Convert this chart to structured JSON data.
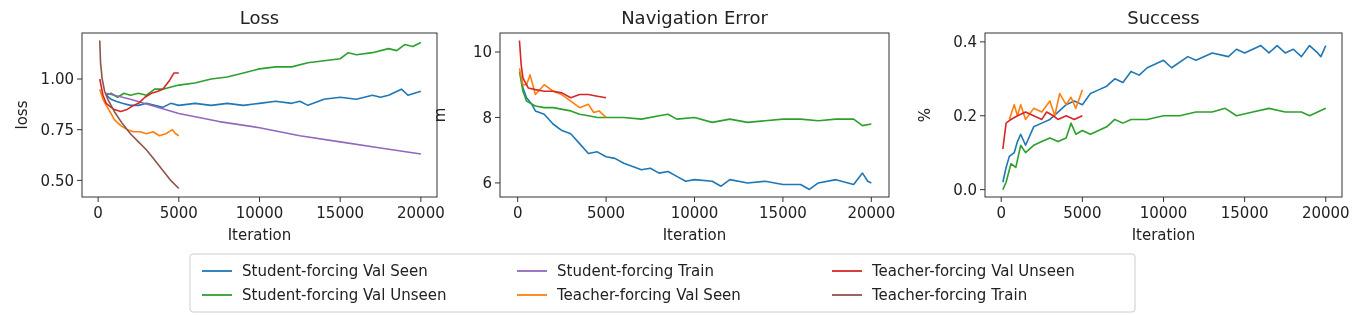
{
  "chart_data": [
    {
      "type": "line",
      "title": "Loss",
      "xlabel": "Iteration",
      "ylabel": "loss",
      "xlim": [
        -1000,
        21000
      ],
      "ylim": [
        0.418,
        1.227
      ],
      "xticks": [
        0,
        5000,
        10000,
        15000,
        20000
      ],
      "yticks": [
        {
          "value": 0.5,
          "label": "0.50"
        },
        {
          "value": 0.75,
          "label": "0.75"
        },
        {
          "value": 1.0,
          "label": "1.00"
        }
      ],
      "grid": false,
      "legend": "bottom",
      "marker": "none",
      "line_style": "solid",
      "series": [
        {
          "name": "Student-forcing Val Seen",
          "color": "#1f77b4",
          "x": [
            500,
            800,
            1100,
            1500,
            2000,
            2500,
            3000,
            3500,
            4000,
            4500,
            5000,
            6000,
            7000,
            8000,
            9000,
            10000,
            11000,
            12000,
            12500,
            13000,
            14000,
            15000,
            16000,
            17000,
            17500,
            18000,
            18800,
            19200,
            19600,
            20000
          ],
          "values": [
            0.92,
            0.9,
            0.89,
            0.88,
            0.87,
            0.87,
            0.88,
            0.87,
            0.86,
            0.88,
            0.87,
            0.88,
            0.87,
            0.88,
            0.87,
            0.88,
            0.89,
            0.88,
            0.89,
            0.87,
            0.9,
            0.91,
            0.9,
            0.92,
            0.91,
            0.92,
            0.95,
            0.92,
            0.93,
            0.94
          ]
        },
        {
          "name": "Student-forcing Val Unseen",
          "color": "#2ca02c",
          "x": [
            500,
            800,
            1200,
            1600,
            2000,
            2500,
            3000,
            3500,
            4000,
            5000,
            6000,
            7000,
            8000,
            9000,
            10000,
            11000,
            12000,
            13000,
            14000,
            15000,
            15500,
            16000,
            17000,
            18000,
            18500,
            19000,
            19500,
            20000
          ],
          "values": [
            0.92,
            0.93,
            0.91,
            0.93,
            0.92,
            0.93,
            0.92,
            0.95,
            0.95,
            0.97,
            0.98,
            1.0,
            1.01,
            1.03,
            1.05,
            1.06,
            1.06,
            1.08,
            1.09,
            1.1,
            1.13,
            1.12,
            1.13,
            1.15,
            1.14,
            1.17,
            1.16,
            1.18
          ]
        },
        {
          "name": "Student-forcing Train",
          "color": "#9467bd",
          "x": [
            500,
            2000,
            5000,
            7500,
            10000,
            12500,
            15000,
            17500,
            20000
          ],
          "values": [
            0.93,
            0.9,
            0.83,
            0.79,
            0.76,
            0.72,
            0.69,
            0.66,
            0.63
          ]
        },
        {
          "name": "Teacher-forcing Val Seen",
          "color": "#ff7f0e",
          "x": [
            100,
            300,
            500,
            800,
            1000,
            1400,
            1800,
            2200,
            2600,
            3000,
            3400,
            3800,
            4200,
            4600,
            4800,
            5000
          ],
          "values": [
            0.95,
            0.9,
            0.87,
            0.83,
            0.8,
            0.77,
            0.75,
            0.74,
            0.74,
            0.73,
            0.74,
            0.72,
            0.73,
            0.75,
            0.73,
            0.72
          ]
        },
        {
          "name": "Teacher-forcing Val Unseen",
          "color": "#d62728",
          "x": [
            100,
            300,
            500,
            800,
            1000,
            1400,
            1800,
            2200,
            2500,
            2900,
            3300,
            3700,
            4000,
            4400,
            4700,
            5000
          ],
          "values": [
            1.0,
            0.92,
            0.88,
            0.86,
            0.85,
            0.84,
            0.85,
            0.87,
            0.88,
            0.91,
            0.93,
            0.94,
            0.95,
            0.99,
            1.03,
            1.03
          ]
        },
        {
          "name": "Teacher-forcing Train",
          "color": "#8c564b",
          "x": [
            100,
            150,
            250,
            400,
            600,
            1000,
            1500,
            2000,
            2500,
            3000,
            3500,
            4000,
            4500,
            5000
          ],
          "values": [
            1.19,
            1.08,
            1.0,
            0.94,
            0.9,
            0.84,
            0.78,
            0.73,
            0.69,
            0.65,
            0.6,
            0.55,
            0.5,
            0.46
          ]
        }
      ]
    },
    {
      "type": "line",
      "title": "Navigation Error",
      "xlabel": "Iteration",
      "ylabel": "m",
      "xlim": [
        -1000,
        21000
      ],
      "ylim": [
        5.57,
        10.58
      ],
      "xticks": [
        0,
        5000,
        10000,
        15000,
        20000
      ],
      "yticks": [
        6,
        8,
        10
      ],
      "grid": false,
      "marker": "none",
      "line_style": "solid",
      "series": [
        {
          "color": "#1f77b4",
          "x": [
            200,
            300,
            500,
            800,
            1000,
            1500,
            2000,
            2500,
            3000,
            3500,
            4000,
            4500,
            5000,
            5500,
            6000,
            6500,
            7000,
            7500,
            8000,
            8500,
            9000,
            9500,
            10000,
            11000,
            11500,
            12000,
            13000,
            14000,
            15000,
            16000,
            16500,
            17000,
            18000,
            19000,
            19500,
            19800,
            20000
          ],
          "values": [
            9.2,
            8.9,
            8.6,
            8.4,
            8.2,
            8.1,
            7.8,
            7.6,
            7.5,
            7.2,
            6.9,
            6.95,
            6.8,
            6.75,
            6.6,
            6.5,
            6.4,
            6.45,
            6.3,
            6.35,
            6.2,
            6.05,
            6.1,
            6.05,
            5.9,
            6.1,
            6.0,
            6.05,
            5.95,
            5.95,
            5.8,
            6.0,
            6.1,
            5.95,
            6.3,
            6.05,
            6.0
          ]
        },
        {
          "color": "#2ca02c",
          "x": [
            100,
            300,
            500,
            1000,
            1500,
            2000,
            3000,
            3500,
            4000,
            4500,
            5000,
            6000,
            7000,
            8000,
            8500,
            9000,
            10000,
            11000,
            12000,
            13000,
            14000,
            15000,
            16000,
            17000,
            18000,
            19000,
            19500,
            20000
          ],
          "values": [
            9.4,
            8.8,
            8.5,
            8.35,
            8.3,
            8.3,
            8.2,
            8.1,
            8.05,
            8.0,
            8.0,
            8.0,
            7.95,
            8.05,
            8.1,
            7.95,
            8.0,
            7.85,
            7.95,
            7.85,
            7.9,
            7.95,
            7.95,
            7.9,
            7.95,
            7.95,
            7.75,
            7.8
          ]
        },
        {
          "color": "#ff7f0e",
          "x": [
            100,
            300,
            500,
            700,
            1000,
            1500,
            2000,
            2500,
            3000,
            3500,
            4000,
            4300,
            4600,
            5000
          ],
          "values": [
            9.5,
            9.0,
            9.0,
            9.3,
            8.7,
            9.0,
            8.8,
            8.7,
            8.5,
            8.3,
            8.4,
            8.15,
            8.2,
            8.0
          ]
        },
        {
          "color": "#d62728",
          "x": [
            100,
            200,
            300,
            600,
            1000,
            1500,
            2000,
            2500,
            3000,
            3500,
            4000,
            4500,
            5000
          ],
          "values": [
            10.35,
            9.6,
            9.2,
            8.9,
            8.85,
            8.8,
            8.8,
            8.75,
            8.6,
            8.7,
            8.7,
            8.65,
            8.6
          ]
        }
      ]
    },
    {
      "type": "line",
      "title": "Success",
      "xlabel": "Iteration",
      "ylabel": "%",
      "xlim": [
        -1000,
        21000
      ],
      "ylim": [
        -0.02,
        0.424
      ],
      "xticks": [
        0,
        5000,
        10000,
        15000,
        20000
      ],
      "yticks": [
        {
          "value": 0,
          "label": "0.0"
        },
        {
          "value": 0.2,
          "label": "0.2"
        },
        {
          "value": 0.4,
          "label": "0.4"
        }
      ],
      "grid": false,
      "marker": "none",
      "line_style": "solid",
      "series": [
        {
          "color": "#1f77b4",
          "x": [
            100,
            300,
            500,
            800,
            1000,
            1200,
            1500,
            2000,
            2500,
            3000,
            3500,
            4000,
            4500,
            5000,
            5500,
            6000,
            6500,
            7000,
            7500,
            8000,
            8500,
            9000,
            10000,
            10500,
            11500,
            12000,
            13000,
            14000,
            14500,
            15000,
            16000,
            16500,
            17000,
            17500,
            18000,
            18500,
            19000,
            19500,
            19700,
            20000
          ],
          "values": [
            0.02,
            0.06,
            0.09,
            0.1,
            0.13,
            0.15,
            0.12,
            0.17,
            0.18,
            0.19,
            0.21,
            0.23,
            0.24,
            0.23,
            0.26,
            0.27,
            0.28,
            0.3,
            0.29,
            0.32,
            0.31,
            0.33,
            0.35,
            0.33,
            0.36,
            0.35,
            0.37,
            0.36,
            0.38,
            0.37,
            0.39,
            0.37,
            0.39,
            0.37,
            0.38,
            0.36,
            0.39,
            0.37,
            0.36,
            0.39
          ]
        },
        {
          "color": "#2ca02c",
          "x": [
            100,
            300,
            600,
            900,
            1200,
            1500,
            2000,
            2500,
            3000,
            3500,
            4000,
            4300,
            4600,
            5000,
            5500,
            6000,
            6500,
            7000,
            7500,
            8000,
            9000,
            10000,
            11000,
            12000,
            13000,
            13800,
            14500,
            15500,
            16500,
            17500,
            18500,
            19000,
            20000
          ],
          "values": [
            0.0,
            0.02,
            0.07,
            0.06,
            0.12,
            0.1,
            0.12,
            0.13,
            0.14,
            0.13,
            0.14,
            0.18,
            0.15,
            0.16,
            0.15,
            0.16,
            0.17,
            0.19,
            0.18,
            0.19,
            0.19,
            0.2,
            0.2,
            0.21,
            0.21,
            0.22,
            0.2,
            0.21,
            0.22,
            0.21,
            0.21,
            0.2,
            0.22
          ]
        },
        {
          "color": "#ff7f0e",
          "x": [
            500,
            800,
            1000,
            1200,
            1500,
            2000,
            2500,
            3000,
            3300,
            3600,
            4000,
            4300,
            4600,
            5000
          ],
          "values": [
            0.19,
            0.23,
            0.2,
            0.23,
            0.19,
            0.22,
            0.21,
            0.24,
            0.2,
            0.26,
            0.23,
            0.25,
            0.22,
            0.27
          ]
        },
        {
          "color": "#d62728",
          "x": [
            100,
            300,
            600,
            1000,
            1500,
            2000,
            2500,
            2800,
            3200,
            3500,
            4000,
            4500,
            5000
          ],
          "values": [
            0.11,
            0.18,
            0.19,
            0.2,
            0.21,
            0.2,
            0.19,
            0.21,
            0.2,
            0.19,
            0.2,
            0.19,
            0.2
          ]
        }
      ]
    }
  ]
}
